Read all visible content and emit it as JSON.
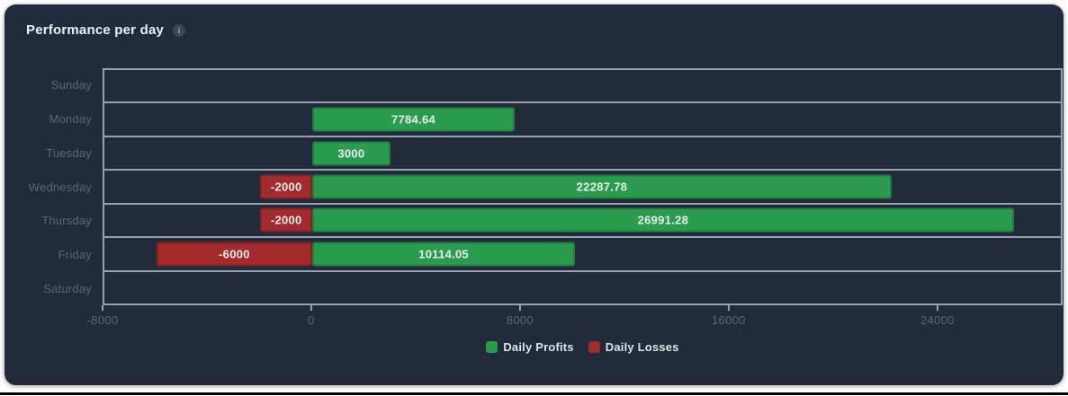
{
  "header": {
    "title": "Performance per day",
    "info_icon_glyph": "i"
  },
  "colors": {
    "card_background": "#212b3c",
    "grid_line": "#97a0ae",
    "axis_label": "#5d6878",
    "profit_green": "#2a9c4e",
    "loss_red": "#a32b2d",
    "bar_label_text": "#eaf2ec",
    "legend_text": "#dee3ea"
  },
  "chart_data": {
    "type": "bar",
    "orientation": "horizontal",
    "title": "Performance per day",
    "categories": [
      "Sunday",
      "Monday",
      "Tuesday",
      "Wednesday",
      "Thursday",
      "Friday",
      "Saturday"
    ],
    "series": [
      {
        "name": "Daily Profits",
        "color": "#2a9c4e",
        "values": [
          null,
          7784.64,
          3000,
          22287.78,
          26991.28,
          10114.05,
          null
        ],
        "labels": [
          "",
          "7784.64",
          "3000",
          "22287.78",
          "26991.28",
          "10114.05",
          ""
        ]
      },
      {
        "name": "Daily Losses",
        "color": "#a32b2d",
        "values": [
          null,
          null,
          null,
          -2000,
          -2000,
          -6000,
          null
        ],
        "labels": [
          "",
          "",
          "",
          "-2000",
          "-2000",
          "-6000",
          ""
        ]
      }
    ],
    "xlim": [
      -8000,
      28800
    ],
    "xticks": [
      -8000,
      0,
      8000,
      16000,
      24000
    ],
    "grid": "horizontal-bands",
    "legend_position": "bottom",
    "xlabel": "",
    "ylabel": ""
  }
}
